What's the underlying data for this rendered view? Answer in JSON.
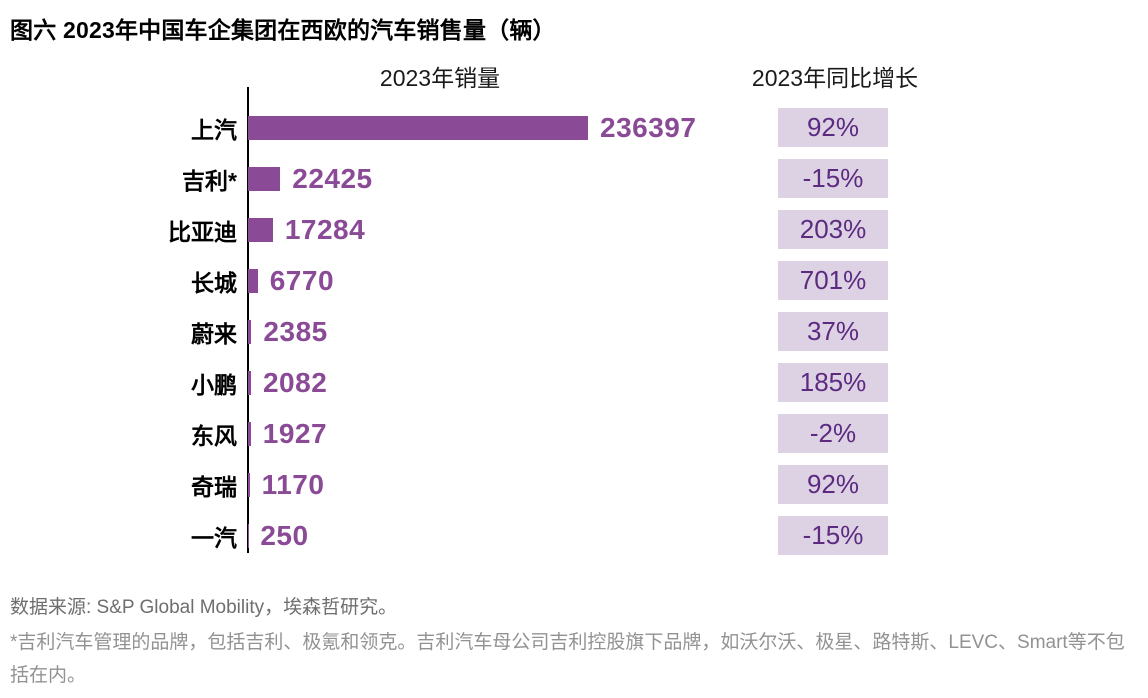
{
  "title": "图六 2023年中国车企集团在西欧的汽车销售量（辆）",
  "chart_data": {
    "type": "bar",
    "orientation": "horizontal",
    "column_headers": [
      "2023年销量",
      "2023年同比增长"
    ],
    "categories": [
      "上汽",
      "吉利*",
      "比亚迪",
      "长城",
      "蔚来",
      "小鹏",
      "东风",
      "奇瑞",
      "一汽"
    ],
    "series": [
      {
        "name": "2023年销量",
        "values": [
          236397,
          22425,
          17284,
          6770,
          2385,
          2082,
          1927,
          1170,
          250
        ]
      },
      {
        "name": "2023年同比增长",
        "values": [
          "92%",
          "-15%",
          "203%",
          "701%",
          "37%",
          "185%",
          "-2%",
          "92%",
          "-15%"
        ]
      }
    ],
    "xlim": [
      0,
      236397
    ],
    "grid": false,
    "legend": "none",
    "bar_color": "#8a4a96",
    "value_label_color": "#8a4a96",
    "badge_bg_color": "#ddd1e4",
    "badge_text_color": "#5c2b80"
  },
  "footer": {
    "source": "数据来源: S&P Global Mobility，埃森哲研究。",
    "footnote": "*吉利汽车管理的品牌，包括吉利、极氪和领克。吉利汽车母公司吉利控股旗下品牌，如沃尔沃、极星、路特斯、LEVC、Smart等不包括在内。"
  }
}
